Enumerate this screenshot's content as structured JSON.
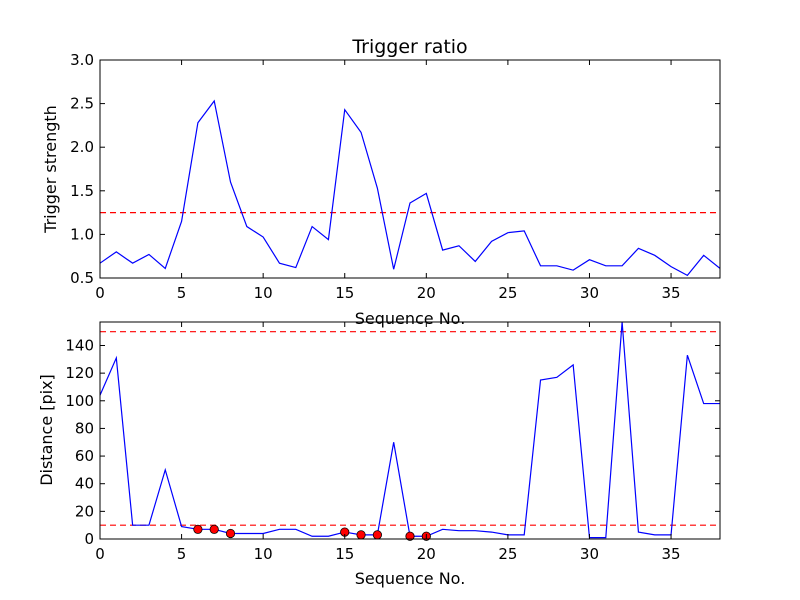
{
  "chart_data": [
    {
      "type": "line",
      "title": "Trigger ratio",
      "xlabel": "Sequence No.",
      "ylabel": "Trigger strength",
      "xlim": [
        0,
        38
      ],
      "ylim": [
        0.5,
        3.0
      ],
      "xticks": [
        "0",
        "5",
        "10",
        "15",
        "20",
        "25",
        "30",
        "35"
      ],
      "yticks": [
        "0.5",
        "1.0",
        "1.5",
        "2.0",
        "2.5",
        "3.0"
      ],
      "grid": false,
      "series": [
        {
          "color": "#0000ff",
          "x": [
            0,
            1,
            2,
            3,
            4,
            5,
            6,
            7,
            8,
            9,
            10,
            11,
            12,
            13,
            14,
            15,
            16,
            17,
            18,
            19,
            20,
            21,
            22,
            23,
            24,
            25,
            26,
            27,
            28,
            29,
            30,
            31,
            32,
            33,
            34,
            35,
            36,
            37,
            38
          ],
          "y": [
            0.67,
            0.8,
            0.67,
            0.77,
            0.61,
            1.15,
            2.28,
            2.53,
            1.6,
            1.09,
            0.97,
            0.67,
            0.62,
            1.09,
            0.94,
            2.43,
            2.17,
            1.53,
            0.6,
            1.36,
            1.47,
            0.82,
            0.87,
            0.69,
            0.92,
            1.02,
            1.04,
            0.64,
            0.64,
            0.59,
            0.71,
            0.64,
            0.64,
            0.84,
            0.76,
            0.63,
            0.53,
            0.76,
            0.61
          ]
        }
      ],
      "reference_lines": [
        {
          "orientation": "horizontal",
          "y": 1.25,
          "style": "dashed",
          "color": "#ff0000"
        }
      ]
    },
    {
      "type": "line",
      "title": "",
      "xlabel": "Sequence No.",
      "ylabel": "Distance [pix]",
      "xlim": [
        0,
        38
      ],
      "ylim": [
        0,
        157
      ],
      "xticks": [
        "0",
        "5",
        "10",
        "15",
        "20",
        "25",
        "30",
        "35"
      ],
      "yticks": [
        "0",
        "20",
        "40",
        "60",
        "80",
        "100",
        "120",
        "140"
      ],
      "grid": false,
      "series": [
        {
          "color": "#0000ff",
          "x": [
            0,
            1,
            2,
            3,
            4,
            5,
            6,
            7,
            8,
            9,
            10,
            11,
            12,
            13,
            14,
            15,
            16,
            17,
            18,
            19,
            20,
            21,
            22,
            23,
            24,
            25,
            26,
            27,
            28,
            29,
            30,
            31,
            32,
            33,
            34,
            35,
            36,
            37,
            38
          ],
          "y": [
            104,
            131,
            10,
            10,
            50,
            9,
            7,
            7,
            4,
            4,
            4,
            7,
            7,
            2,
            2,
            5,
            3,
            3,
            70,
            2,
            2,
            7,
            6,
            6,
            5,
            3,
            3,
            115,
            117,
            126,
            1,
            1,
            157,
            5,
            3,
            3,
            133,
            98,
            98
          ]
        }
      ],
      "markers": {
        "color": "#ff0000",
        "x": [
          6,
          7,
          8,
          15,
          16,
          17,
          19,
          20
        ],
        "y": [
          7,
          7,
          4,
          5,
          3,
          3,
          2,
          2
        ]
      },
      "reference_lines": [
        {
          "orientation": "horizontal",
          "y": 10,
          "style": "dashed",
          "color": "#ff0000"
        },
        {
          "orientation": "horizontal",
          "y": 150,
          "style": "dashed",
          "color": "#ff0000"
        }
      ]
    }
  ]
}
